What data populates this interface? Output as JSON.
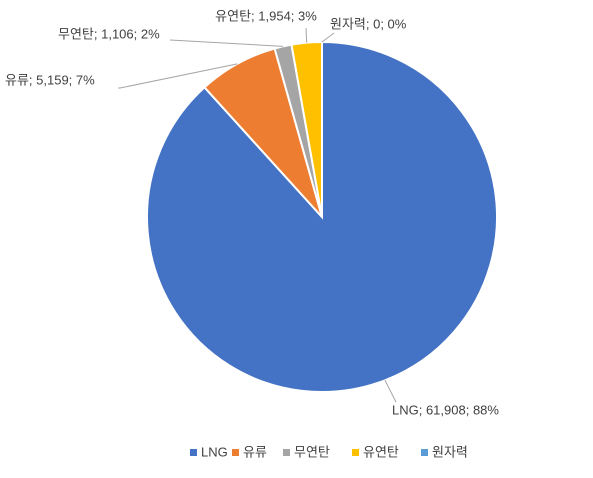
{
  "chart_data": {
    "type": "pie",
    "categories": [
      "LNG",
      "유류",
      "무연탄",
      "유연탄",
      "원자력"
    ],
    "values": [
      61908,
      5159,
      1106,
      1954,
      0
    ],
    "value_labels": [
      "LNG; 61,908; 88%",
      "유류; 5,159; 7%",
      "무연탄; 1,106; 2%",
      "유연탄; 1,954; 3%",
      "원자력; 0; 0%"
    ],
    "colors": [
      "#4472c4",
      "#ed7d31",
      "#a5a5a5",
      "#ffc000",
      "#5b9bd5"
    ],
    "legend": "bottom"
  }
}
